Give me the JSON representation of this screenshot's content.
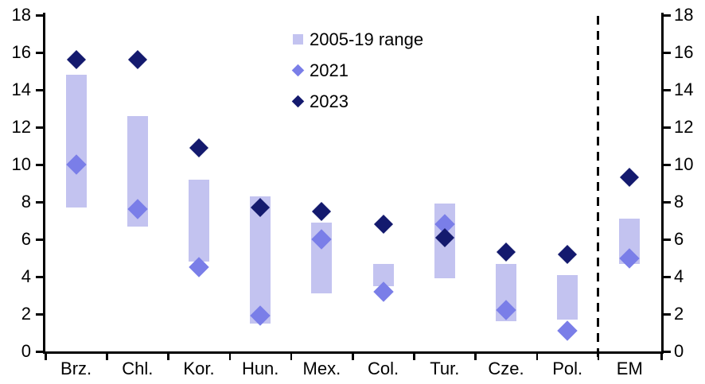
{
  "chart_data": {
    "type": "bar",
    "subtype": "range-bars-with-point-markers",
    "title": "",
    "xlabel": "",
    "ylabel": "",
    "ylim": [
      0,
      18
    ],
    "yticks": [
      0,
      2,
      4,
      6,
      8,
      10,
      12,
      14,
      16,
      18
    ],
    "grid": false,
    "legend_position": "top-center-inside",
    "dual_axis": true,
    "separator_after_category": "Pol.",
    "categories": [
      "Brz.",
      "Chl.",
      "Kor.",
      "Hun.",
      "Mex.",
      "Col.",
      "Tur.",
      "Cze.",
      "Pol.",
      "EM"
    ],
    "series": [
      {
        "name": "2005-19 range",
        "type": "range-bar",
        "color": "#c3c3f0",
        "low": [
          7.7,
          6.7,
          4.8,
          1.5,
          3.1,
          3.5,
          3.9,
          1.6,
          1.7,
          4.7
        ],
        "high": [
          14.8,
          12.6,
          9.2,
          8.3,
          6.9,
          4.7,
          7.9,
          4.7,
          4.1,
          7.1
        ]
      },
      {
        "name": "2021",
        "type": "diamond-marker",
        "color": "#7a7ee8",
        "values": [
          10.0,
          7.6,
          4.5,
          1.9,
          6.0,
          3.2,
          6.8,
          2.2,
          1.1,
          5.0
        ]
      },
      {
        "name": "2023",
        "type": "diamond-marker",
        "color": "#141a6e",
        "values": [
          15.6,
          15.6,
          10.9,
          7.7,
          7.5,
          6.8,
          6.1,
          5.3,
          5.2,
          9.3
        ]
      }
    ],
    "axis_color": "#000000",
    "text_color": "#000000"
  }
}
